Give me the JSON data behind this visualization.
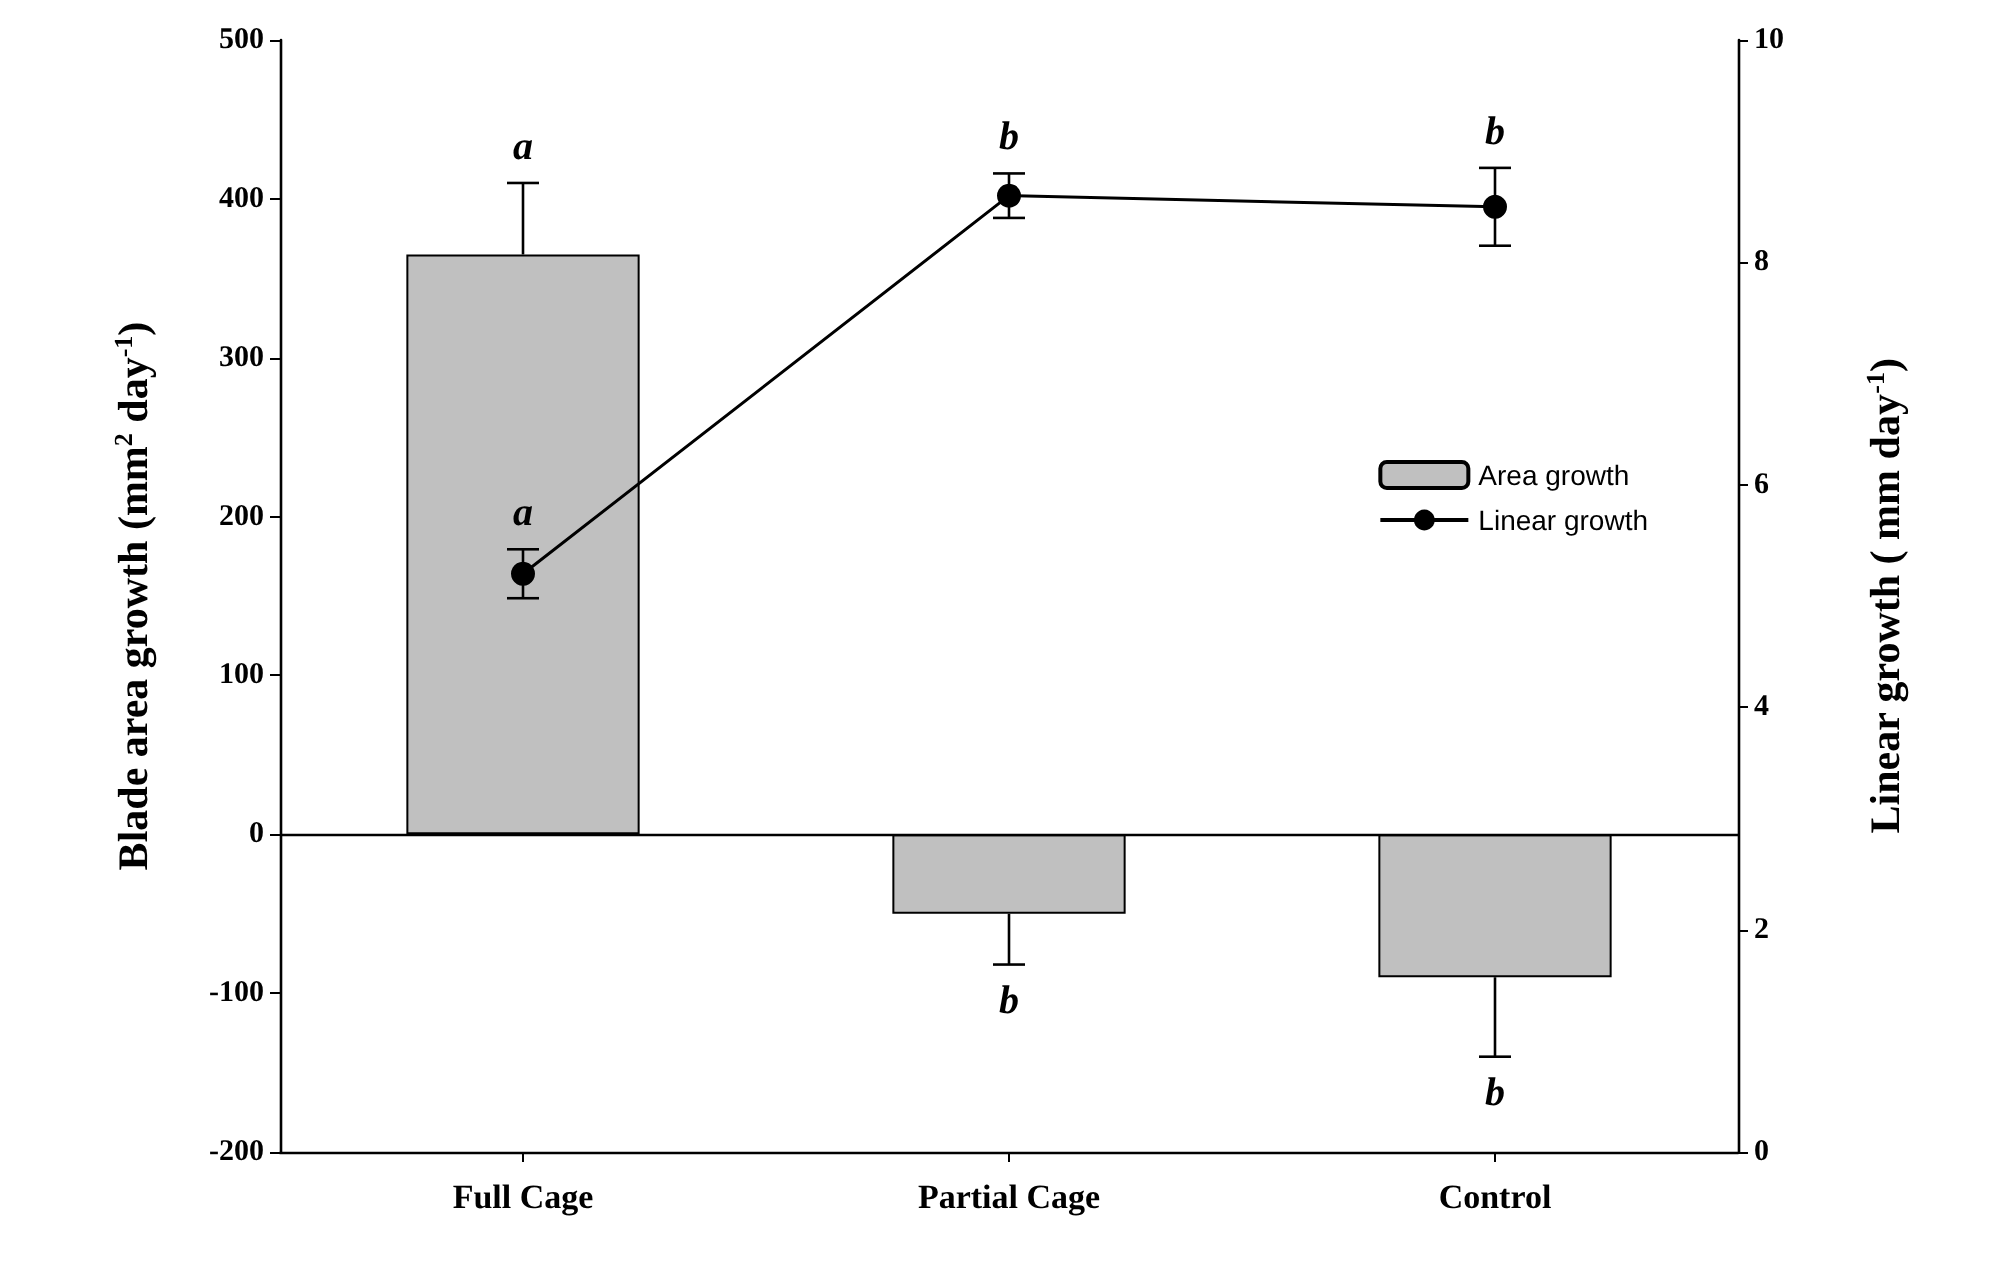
{
  "chart_data": {
    "type": "bar",
    "categories": [
      "Full Cage",
      "Partial Cage",
      "Control"
    ],
    "ylabel": "Blade area growth (mm$^{2}$ day$^{-1}$)",
    "y2label": "Linear growth ( mm day$^{-1}$)",
    "series": [
      {
        "name": "Area growth",
        "color": "#c0c0c0",
        "values": [
          365,
          -50,
          -90
        ],
        "errors": [
          45,
          32,
          50
        ],
        "value_labels": [
          "a",
          "b",
          "b"
        ]
      },
      {
        "name": "Linear growth",
        "type": "line",
        "axis": "y2",
        "color": "#000000",
        "values": [
          5.2,
          8.6,
          8.5
        ],
        "errors": [
          0.22,
          0.2,
          0.35
        ],
        "value_labels": [
          "a",
          "b",
          "b"
        ],
        "marker": "circle",
        "line_style": "solid"
      }
    ],
    "ylim": [
      -200,
      500
    ],
    "yticks": [
      -200,
      -100,
      0,
      100,
      200,
      300,
      400,
      500
    ],
    "y2lim": [
      0,
      10
    ],
    "y2ticks": [
      0,
      2,
      4,
      6,
      8,
      10
    ],
    "ref_lines": [
      {
        "axis": "y",
        "value": 0
      }
    ],
    "legend": "right"
  }
}
